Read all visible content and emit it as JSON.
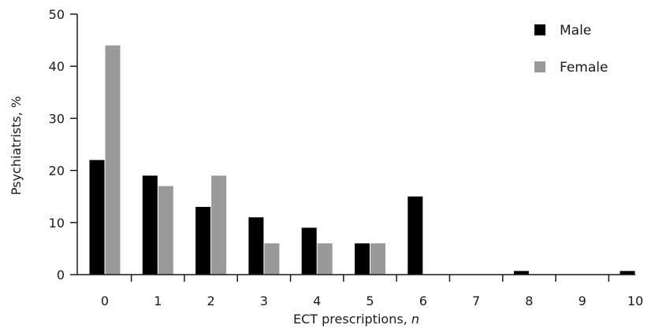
{
  "chart_data": {
    "type": "bar",
    "categories": [
      "0",
      "1",
      "2",
      "3",
      "4",
      "5",
      "6",
      "7",
      "8",
      "9",
      "10"
    ],
    "series": [
      {
        "name": "Male",
        "color": "#000000",
        "values": [
          22,
          19,
          13,
          11,
          9,
          6,
          15,
          0,
          0.7,
          0,
          0.7
        ]
      },
      {
        "name": "Female",
        "color": "#999999",
        "values": [
          44,
          17,
          19,
          6,
          6,
          6,
          0,
          0,
          0,
          0,
          0
        ]
      }
    ],
    "xlabel": "ECT prescriptions, ",
    "xlabel_italic": "n",
    "ylabel": "Psychiatrists, %",
    "ylim": [
      0,
      50
    ],
    "yticks": [
      "0",
      "10",
      "20",
      "30",
      "40",
      "50"
    ],
    "legend_position": "top-right",
    "grid": false
  }
}
